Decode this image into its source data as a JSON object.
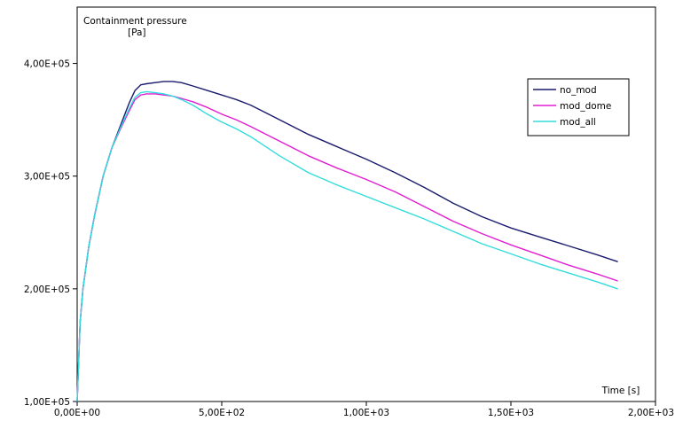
{
  "chart_data": {
    "type": "line",
    "title": "",
    "ylabel_line1": "Containment pressure",
    "ylabel_line2": "[Pa]",
    "xlabel": "Time [s]",
    "xlim": [
      0,
      2000
    ],
    "ylim": [
      100000,
      450000
    ],
    "xticks": [
      {
        "value": 0,
        "label": "0,00E+00"
      },
      {
        "value": 500,
        "label": "5,00E+02"
      },
      {
        "value": 1000,
        "label": "1,00E+03"
      },
      {
        "value": 1500,
        "label": "1,50E+03"
      },
      {
        "value": 2000,
        "label": "2,00E+03"
      }
    ],
    "yticks": [
      {
        "value": 100000,
        "label": "1,00E+05"
      },
      {
        "value": 200000,
        "label": "2,00E+05"
      },
      {
        "value": 300000,
        "label": "3,00E+05"
      },
      {
        "value": 400000,
        "label": "4,00E+05"
      }
    ],
    "grid": false,
    "legend_position": "top-right",
    "series": [
      {
        "name": "no_mod",
        "color": "#1a1a6e",
        "x": [
          0,
          10,
          20,
          40,
          60,
          90,
          120,
          150,
          180,
          200,
          220,
          240,
          270,
          300,
          330,
          360,
          400,
          450,
          500,
          550,
          600,
          700,
          800,
          900,
          1000,
          1100,
          1200,
          1300,
          1400,
          1500,
          1600,
          1700,
          1800,
          1870
        ],
        "y": [
          100000,
          170000,
          200000,
          237000,
          265000,
          300000,
          325000,
          345000,
          365000,
          376000,
          381000,
          382000,
          383000,
          384000,
          384000,
          383000,
          380000,
          376000,
          372000,
          368000,
          363000,
          350000,
          337000,
          326000,
          315000,
          303000,
          290000,
          276000,
          264000,
          254000,
          246000,
          238000,
          230000,
          224000
        ]
      },
      {
        "name": "mod_dome",
        "color": "#e11fd2",
        "x": [
          0,
          10,
          20,
          40,
          60,
          90,
          120,
          150,
          180,
          200,
          220,
          240,
          270,
          300,
          330,
          360,
          400,
          450,
          500,
          550,
          600,
          700,
          800,
          900,
          1000,
          1100,
          1200,
          1300,
          1400,
          1500,
          1600,
          1700,
          1800,
          1870
        ],
        "y": [
          100000,
          170000,
          200000,
          237000,
          265000,
          300000,
          325000,
          342000,
          358000,
          368000,
          372000,
          373000,
          373000,
          372000,
          371000,
          369000,
          366000,
          361000,
          355000,
          350000,
          344000,
          331000,
          318000,
          307000,
          297000,
          286000,
          273000,
          260000,
          249000,
          239000,
          230000,
          221000,
          213000,
          207000
        ]
      },
      {
        "name": "mod_all",
        "color": "#33dcdc",
        "x": [
          0,
          10,
          20,
          40,
          60,
          90,
          120,
          150,
          180,
          200,
          220,
          240,
          270,
          300,
          330,
          360,
          400,
          450,
          500,
          550,
          600,
          700,
          800,
          900,
          1000,
          1100,
          1200,
          1300,
          1400,
          1500,
          1600,
          1700,
          1800,
          1870
        ],
        "y": [
          100000,
          170000,
          200000,
          237000,
          265000,
          300000,
          325000,
          343000,
          360000,
          370000,
          374000,
          375000,
          374000,
          373000,
          371000,
          368000,
          363000,
          355000,
          348000,
          342000,
          335000,
          318000,
          303000,
          292000,
          282000,
          272000,
          262000,
          251000,
          240000,
          231000,
          222000,
          214000,
          206000,
          200000
        ]
      }
    ]
  }
}
